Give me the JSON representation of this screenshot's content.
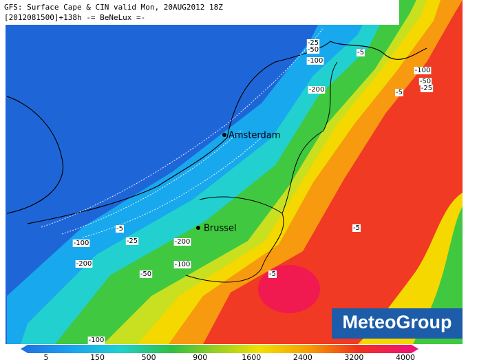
{
  "header": {
    "line1": "GFS: Surface Cape & CIN valid Mon, 20AUG2012 18Z",
    "line2": "[2012081500]+138h -= BeNeLux =-"
  },
  "cities": [
    {
      "label": "Amsterdam"
    },
    {
      "label": "Brussel"
    }
  ],
  "contour_labels": [
    "-25",
    "-50",
    "-5",
    "-100",
    "-100",
    "-50",
    "-25",
    "-5",
    "-200",
    "-5",
    "-5",
    "-25",
    "-200",
    "-100",
    "-200",
    "-100",
    "-50",
    "-5",
    "-100"
  ],
  "colorbar": {
    "ticks": [
      5,
      150,
      500,
      900,
      1600,
      2400,
      3200,
      4000
    ]
  },
  "logo": "MeteoGroup"
}
